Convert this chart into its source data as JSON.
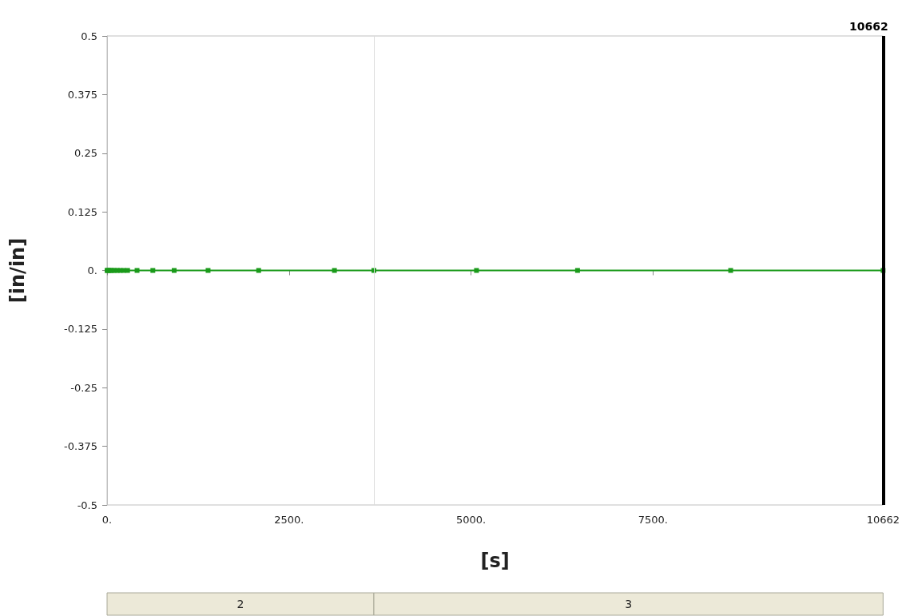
{
  "chart_data": {
    "type": "line",
    "xlabel": "[s]",
    "ylabel": "[in/in]",
    "x": [
      0,
      10,
      25,
      45,
      70,
      100,
      140,
      180,
      228,
      282,
      412,
      629,
      922,
      1388,
      2083,
      3124,
      3666,
      5076,
      6464,
      8568,
      10662
    ],
    "series": [
      {
        "color": "#1a9a1a",
        "values": [
          0,
          0,
          0,
          0,
          0,
          0,
          0,
          0,
          0,
          0,
          0,
          0,
          0,
          0,
          0,
          0,
          0,
          0,
          0,
          0,
          0
        ]
      }
    ],
    "marker": "square",
    "line_style": "solid",
    "xlim": [
      0,
      10662
    ],
    "xticks": [
      {
        "value": 0,
        "label": "0."
      },
      {
        "value": 2500,
        "label": "2500."
      },
      {
        "value": 5000,
        "label": "5000."
      },
      {
        "value": 7500,
        "label": "7500."
      },
      10662
    ],
    "ylim": [
      -0.5,
      0.5
    ],
    "yticks": [
      {
        "value": -0.5,
        "label": "-0.5"
      },
      {
        "value": -0.375,
        "label": "-0.375"
      },
      {
        "value": -0.25,
        "label": "-0.25"
      },
      {
        "value": -0.125,
        "label": "-0.125"
      },
      {
        "value": 0,
        "label": "0."
      },
      {
        "value": 0.125,
        "label": "0.125"
      },
      {
        "value": 0.25,
        "label": "0.25"
      },
      {
        "value": 0.375,
        "label": "0.375"
      },
      {
        "value": 0.5,
        "label": "0.5"
      }
    ],
    "ref_lines": [
      {
        "axis": "x",
        "value": 3666,
        "label": null,
        "color": "#dcdcdc"
      },
      {
        "axis": "x",
        "value": 10662,
        "label": "10662",
        "color": "#000000"
      }
    ],
    "annotations": [
      "2",
      "3"
    ]
  }
}
